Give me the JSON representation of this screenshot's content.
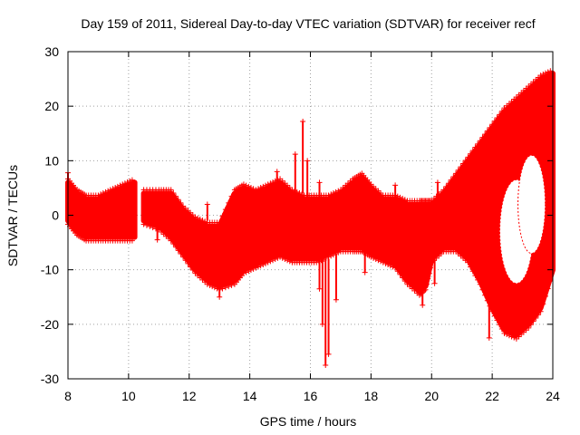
{
  "chart_data": {
    "type": "scatter",
    "title": "Day 159 of 2011, Sidereal Day-to-day VTEC variation (SDTVAR) for receiver recf",
    "xlabel": "GPS time / hours",
    "ylabel": "SDTVAR / TECUs",
    "xlim": [
      8,
      24
    ],
    "ylim": [
      -30,
      30
    ],
    "x_ticks": [
      8,
      10,
      12,
      14,
      16,
      18,
      20,
      22,
      24
    ],
    "y_ticks": [
      -30,
      -20,
      -10,
      0,
      10,
      20,
      30
    ],
    "grid": true,
    "series": [
      {
        "name": "SDTVAR",
        "color": "#ff0000",
        "marker": "plus",
        "band": {
          "x": [
            8.0,
            8.3,
            8.6,
            9.0,
            9.4,
            9.8,
            10.2,
            10.3,
            10.5,
            11.0,
            11.4,
            11.8,
            12.2,
            12.6,
            13.0,
            13.5,
            13.8,
            14.2,
            14.6,
            15.0,
            15.4,
            15.8,
            16.2,
            16.6,
            17.0,
            17.4,
            17.7,
            18.0,
            18.4,
            18.8,
            19.2,
            19.6,
            19.8,
            20.0,
            20.4,
            20.8,
            21.2,
            21.6,
            22.0,
            22.4,
            22.8,
            23.2,
            23.6,
            24.0
          ],
          "upper": [
            6,
            4,
            3,
            3,
            4,
            5,
            6,
            null,
            4,
            4,
            4,
            1,
            -1,
            -2,
            -2,
            4,
            5,
            4,
            5,
            6,
            4,
            3,
            3,
            3,
            4,
            6,
            7,
            5,
            3,
            3,
            2,
            2,
            2,
            2,
            4,
            7,
            10,
            13,
            16,
            19,
            21,
            23,
            25,
            26
          ],
          "lower": [
            -1,
            -3,
            -4,
            -4,
            -4,
            -4,
            -4,
            null,
            -1,
            -2,
            -4,
            -7,
            -10,
            -12,
            -13,
            -12,
            -10,
            -9,
            -8,
            -7,
            -8,
            -8,
            -8,
            -7,
            -6,
            -6,
            -6,
            -7,
            -8,
            -9,
            -12,
            -14,
            -13,
            -8,
            -6,
            -6,
            -8,
            -12,
            -17,
            -21,
            -22,
            -20,
            -17,
            -10
          ]
        },
        "outliers": [
          {
            "x": 15.75,
            "y": 17.2
          },
          {
            "x": 15.5,
            "y": 11.2
          },
          {
            "x": 15.9,
            "y": 10.0
          },
          {
            "x": 16.3,
            "y": 6.0
          },
          {
            "x": 16.5,
            "y": -27.5
          },
          {
            "x": 16.6,
            "y": -25.5
          },
          {
            "x": 16.4,
            "y": -20.0
          },
          {
            "x": 16.3,
            "y": -13.5
          },
          {
            "x": 16.85,
            "y": -15.5
          },
          {
            "x": 17.8,
            "y": -10.5
          },
          {
            "x": 19.7,
            "y": -16.5
          },
          {
            "x": 20.1,
            "y": -12.5
          },
          {
            "x": 14.9,
            "y": 8.0
          },
          {
            "x": 13.0,
            "y": -15.0
          },
          {
            "x": 12.6,
            "y": 2.0
          },
          {
            "x": 21.9,
            "y": -22.5
          },
          {
            "x": 8.0,
            "y": 7.8
          },
          {
            "x": 10.95,
            "y": -4.5
          },
          {
            "x": 18.8,
            "y": 5.5
          },
          {
            "x": 20.2,
            "y": 6.0
          }
        ],
        "holes": [
          {
            "x": 22.8,
            "y": -3.0,
            "rx": 0.55,
            "ry": 9.5
          },
          {
            "x": 23.3,
            "y": 2.0,
            "rx": 0.45,
            "ry": 9.0
          }
        ]
      }
    ]
  }
}
